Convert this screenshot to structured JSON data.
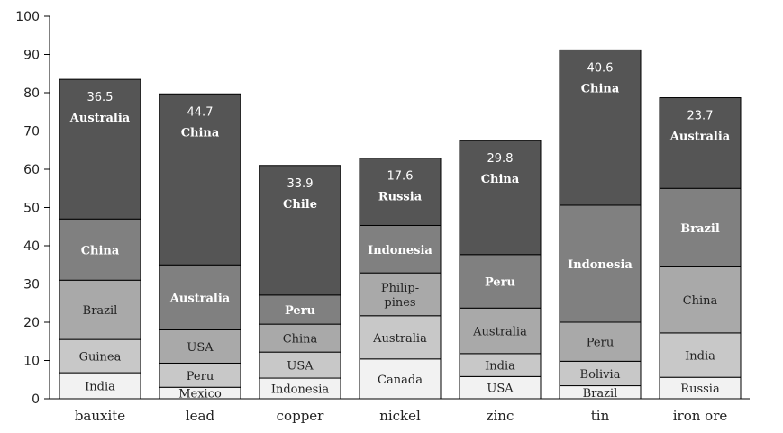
{
  "chart_data": {
    "type": "bar",
    "stacked": true,
    "title": "",
    "xlabel": "",
    "ylabel": "",
    "ylim": [
      0,
      100
    ],
    "y_ticks": [
      0,
      10,
      20,
      30,
      40,
      50,
      60,
      70,
      80,
      90,
      100
    ],
    "grid": false,
    "legend": "none",
    "colors": {
      "shade_1": "#f2f2f2",
      "shade_2": "#c8c8c8",
      "shade_3": "#a9a9a9",
      "shade_4": "#808080",
      "shade_5": "#555555",
      "outline": "#000000"
    },
    "categories": [
      "bauxite",
      "lead",
      "copper",
      "nickel",
      "zinc",
      "tin",
      "iron ore"
    ],
    "bars": [
      {
        "category": "bauxite",
        "top_value": "36.5",
        "segments": [
          {
            "label": "India",
            "value": 6.8,
            "shade": "shade_1"
          },
          {
            "label": "Guinea",
            "value": 8.7,
            "shade": "shade_2"
          },
          {
            "label": "Brazil",
            "value": 15.5,
            "shade": "shade_3"
          },
          {
            "label": "China",
            "value": 16,
            "shade": "shade_4"
          },
          {
            "label": "Australia",
            "value": 36.5,
            "shade": "shade_5"
          }
        ]
      },
      {
        "category": "lead",
        "top_value": "44.7",
        "segments": [
          {
            "label": "Mexico",
            "value": 3,
            "shade": "shade_1"
          },
          {
            "label": "Peru",
            "value": 6.3,
            "shade": "shade_2"
          },
          {
            "label": "USA",
            "value": 8.7,
            "shade": "shade_3"
          },
          {
            "label": "Australia",
            "value": 17,
            "shade": "shade_4"
          },
          {
            "label": "China",
            "value": 44.7,
            "shade": "shade_5"
          }
        ]
      },
      {
        "category": "copper",
        "top_value": "33.9",
        "segments": [
          {
            "label": "Indonesia",
            "value": 5.4,
            "shade": "shade_1"
          },
          {
            "label": "USA",
            "value": 6.8,
            "shade": "shade_2"
          },
          {
            "label": "China",
            "value": 7.3,
            "shade": "shade_3"
          },
          {
            "label": "Peru",
            "value": 7.6,
            "shade": "shade_4"
          },
          {
            "label": "Chile",
            "value": 33.9,
            "shade": "shade_5"
          }
        ]
      },
      {
        "category": "nickel",
        "top_value": "17.6",
        "segments": [
          {
            "label": "Canada",
            "value": 10.4,
            "shade": "shade_1"
          },
          {
            "label": "Australia",
            "value": 11.3,
            "shade": "shade_2"
          },
          {
            "label": "Philip-pines",
            "value": 11.2,
            "shade": "shade_3"
          },
          {
            "label": "Indonesia",
            "value": 12.4,
            "shade": "shade_4"
          },
          {
            "label": "Russia",
            "value": 17.6,
            "shade": "shade_5"
          }
        ]
      },
      {
        "category": "zinc",
        "top_value": "29.8",
        "segments": [
          {
            "label": "USA",
            "value": 5.8,
            "shade": "shade_1"
          },
          {
            "label": "India",
            "value": 6,
            "shade": "shade_2"
          },
          {
            "label": "Australia",
            "value": 11.9,
            "shade": "shade_3"
          },
          {
            "label": "Peru",
            "value": 14,
            "shade": "shade_4"
          },
          {
            "label": "China",
            "value": 29.8,
            "shade": "shade_5"
          }
        ]
      },
      {
        "category": "tin",
        "top_value": "40.6",
        "segments": [
          {
            "label": "Brazil",
            "value": 3.4,
            "shade": "shade_1"
          },
          {
            "label": "Bolivia",
            "value": 6.4,
            "shade": "shade_2"
          },
          {
            "label": "Peru",
            "value": 10.2,
            "shade": "shade_3"
          },
          {
            "label": "Indonesia",
            "value": 30.6,
            "shade": "shade_4"
          },
          {
            "label": "China",
            "value": 40.6,
            "shade": "shade_5"
          }
        ]
      },
      {
        "category": "iron ore",
        "top_value": "23.7",
        "segments": [
          {
            "label": "Russia",
            "value": 5.6,
            "shade": "shade_1"
          },
          {
            "label": "India",
            "value": 11.6,
            "shade": "shade_2"
          },
          {
            "label": "China",
            "value": 17.3,
            "shade": "shade_3"
          },
          {
            "label": "Brazil",
            "value": 20.5,
            "shade": "shade_4"
          },
          {
            "label": "Australia",
            "value": 23.7,
            "shade": "shade_5"
          }
        ]
      }
    ]
  }
}
